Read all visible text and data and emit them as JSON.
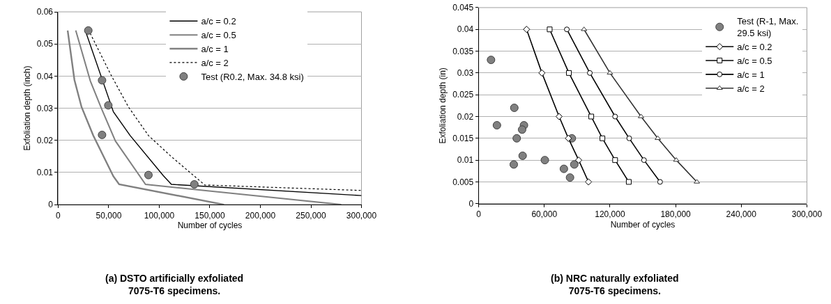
{
  "chart_data": [
    {
      "type": "line",
      "xlabel": "Number of cycles",
      "ylabel": "Exfoliation depth (inch)",
      "xlim": [
        0,
        300000
      ],
      "xticks": [
        {
          "value": 0,
          "label": "0"
        },
        {
          "value": 50000,
          "label": "50,000"
        },
        {
          "value": 100000,
          "label": "100,000"
        },
        {
          "value": 150000,
          "label": "150,000"
        },
        {
          "value": 200000,
          "label": "200,000"
        },
        {
          "value": 250000,
          "label": "250,000"
        },
        {
          "value": 300000,
          "label": "300,000"
        }
      ],
      "ylim": [
        0,
        0.06
      ],
      "yticks": [
        {
          "value": 0,
          "label": "0"
        },
        0.01,
        0.02,
        0.03,
        0.04,
        0.05,
        0.06
      ],
      "grid": "y",
      "legend": "top right",
      "annotations": [
        "(a) DSTO artificially exfoliated\n7075-T6 specimens."
      ],
      "series": [
        {
          "name": "a/c = 0.2",
          "color": "#000000",
          "line_style": "solid",
          "marker": "none",
          "x": [
            26800,
            54600,
            71200,
            104000,
            112000,
            300000
          ],
          "values": [
            0.0542,
            0.0289,
            0.0215,
            0.009,
            0.0063,
            0.0028
          ]
        },
        {
          "name": "a/c = 0.5",
          "color": "#808080",
          "line_style": "solid",
          "marker": "none",
          "x": [
            17400,
            31800,
            42700,
            56600,
            86400,
            280000
          ],
          "values": [
            0.0542,
            0.0385,
            0.03,
            0.0198,
            0.0063,
            0.0
          ]
        },
        {
          "name": "a/c = 1",
          "color": "#808080",
          "line_style": "solid",
          "marker": "none",
          "x": [
            9400,
            16100,
            23100,
            34700,
            54600,
            60300,
            164000
          ],
          "values": [
            0.0542,
            0.0388,
            0.0304,
            0.0215,
            0.0088,
            0.0063,
            0.0
          ]
        },
        {
          "name": "a/c = 2",
          "color": "#000000",
          "line_style": "dotted",
          "marker": "none",
          "x": [
            29800,
            52000,
            69500,
            89300,
            111700,
            145000,
            300000
          ],
          "values": [
            0.0545,
            0.0405,
            0.0304,
            0.0215,
            0.015,
            0.0061,
            0.0044
          ]
        },
        {
          "name": "Test (R0.2, Max. 34.8 ksi)",
          "type": "scatter",
          "color": "#808080",
          "marker": "circle",
          "x": [
            29800,
            43400,
            49600,
            43400,
            89300,
            134700
          ],
          "values": [
            0.0542,
            0.0387,
            0.0309,
            0.0217,
            0.0092,
            0.0063
          ]
        }
      ]
    },
    {
      "type": "line",
      "xlabel": "Number of cycles",
      "ylabel": "Exfoliation depth (in)",
      "xlim": [
        0,
        300000
      ],
      "xticks": [
        {
          "value": 0,
          "label": "0"
        },
        {
          "value": 60000,
          "label": "60,000"
        },
        {
          "value": 120000,
          "label": "120,000"
        },
        {
          "value": 180000,
          "label": "180,000"
        },
        {
          "value": 240000,
          "label": "240,000"
        },
        {
          "value": 300000,
          "label": "300,000"
        }
      ],
      "ylim": [
        0,
        0.045
      ],
      "yticks": [
        {
          "value": 0,
          "label": "0"
        },
        0.005,
        0.01,
        0.015,
        0.02,
        0.025,
        0.03,
        0.035,
        0.04,
        0.045
      ],
      "grid": "y",
      "legend": "top right",
      "annotations": [
        "(b) NRC naturally exfoliated\n7075-T6 specimens."
      ],
      "series": [
        {
          "name": "Test (R-1, Max. 29.5 ksi)",
          "type": "scatter",
          "color": "#808080",
          "marker": "circle",
          "x": [
            11300,
            32600,
            16700,
            41400,
            39700,
            34800,
            85200,
            40200,
            32100,
            60500,
            77900,
            87400,
            83500
          ],
          "values": [
            0.033,
            0.022,
            0.018,
            0.018,
            0.017,
            0.015,
            0.015,
            0.011,
            0.009,
            0.01,
            0.008,
            0.009,
            0.006
          ]
        },
        {
          "name": "a/c = 0.2",
          "color": "#000000",
          "line_style": "solid",
          "marker": "diamond",
          "x": [
            43800,
            57800,
            73500,
            82000,
            91400,
            100400
          ],
          "values": [
            0.04,
            0.03,
            0.02,
            0.015,
            0.01,
            0.005
          ]
        },
        {
          "name": "a/c = 0.5",
          "color": "#000000",
          "line_style": "solid",
          "marker": "square",
          "x": [
            64900,
            82500,
            102900,
            113100,
            124700,
            137200
          ],
          "values": [
            0.04,
            0.03,
            0.02,
            0.015,
            0.01,
            0.005
          ]
        },
        {
          "name": "a/c = 1",
          "color": "#000000",
          "line_style": "solid",
          "marker": "circle",
          "x": [
            80600,
            101600,
            124700,
            137600,
            151100,
            165800
          ],
          "values": [
            0.04,
            0.03,
            0.02,
            0.015,
            0.01,
            0.005
          ]
        },
        {
          "name": "a/c = 2",
          "color": "#333333",
          "line_style": "solid",
          "marker": "triangle",
          "x": [
            96300,
            120000,
            148400,
            163700,
            180600,
            199400
          ],
          "values": [
            0.04,
            0.03,
            0.02,
            0.015,
            0.01,
            0.005
          ]
        }
      ]
    }
  ]
}
